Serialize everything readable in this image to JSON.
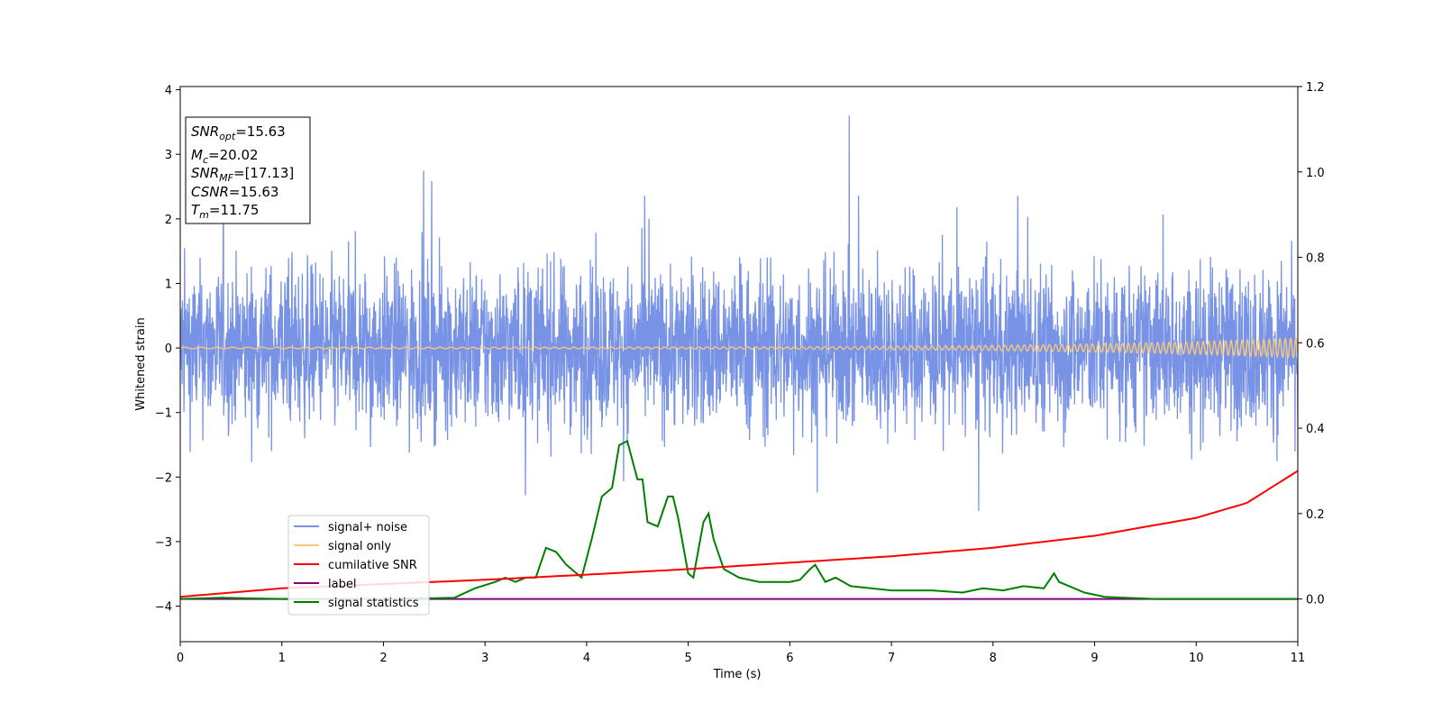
{
  "chart_data": {
    "type": "line",
    "xlabel": "Time (s)",
    "ylabel": "Whitened strain",
    "xlim": [
      0,
      11
    ],
    "ylim": [
      -4.55,
      4.05
    ],
    "y2lim": [
      -0.1,
      1.2
    ],
    "xticks": [
      0,
      1,
      2,
      3,
      4,
      5,
      6,
      7,
      8,
      9,
      10,
      11
    ],
    "yticks": [
      -4,
      -3,
      -2,
      -1,
      0,
      1,
      2,
      3,
      4
    ],
    "yticks_labels": [
      "−4",
      "−3",
      "−2",
      "−1",
      "0",
      "1",
      "2",
      "3",
      "4"
    ],
    "y2ticks": [
      0.0,
      0.2,
      0.4,
      0.6,
      0.8,
      1.0,
      1.2
    ],
    "y2ticks_labels": [
      "0.0",
      "0.2",
      "0.4",
      "0.6",
      "0.8",
      "1.0",
      "1.2"
    ],
    "grid": false,
    "legend_position": "lower-left",
    "colors": {
      "signal_noise": "#7893e6",
      "signal_only": "#f7c77a",
      "cumulative_snr": "#ff0000",
      "label": "#800080",
      "signal_statistics": "#008000"
    },
    "series": [
      {
        "name": "signal+ noise",
        "axis": "left",
        "note": "high-frequency noise, mostly within ±1.5, peaks to about ±3",
        "envelope_low": -1.55,
        "envelope_high": 1.45
      },
      {
        "name": "signal only",
        "axis": "left",
        "note": "chirp centered at 0, amplitude growing to about 0.15 at t=11"
      },
      {
        "name": "cumilative SNR",
        "axis": "right",
        "x": [
          0,
          1,
          2,
          3,
          4,
          5,
          6,
          7,
          8,
          9,
          10,
          10.5,
          11
        ],
        "values": [
          0.005,
          0.025,
          0.035,
          0.045,
          0.057,
          0.07,
          0.085,
          0.1,
          0.12,
          0.148,
          0.19,
          0.225,
          0.3
        ]
      },
      {
        "name": "label",
        "axis": "right",
        "x": [
          0,
          11
        ],
        "values": [
          0.0,
          0.0
        ]
      },
      {
        "name": "signal statistics",
        "axis": "right",
        "x": [
          0,
          0.4,
          1.0,
          2.0,
          2.5,
          2.7,
          2.9,
          3.1,
          3.2,
          3.3,
          3.4,
          3.5,
          3.6,
          3.7,
          3.8,
          3.95,
          4.05,
          4.15,
          4.25,
          4.32,
          4.4,
          4.5,
          4.55,
          4.6,
          4.7,
          4.8,
          4.85,
          4.9,
          5.0,
          5.05,
          5.15,
          5.2,
          5.25,
          5.35,
          5.5,
          5.7,
          5.85,
          6.0,
          6.1,
          6.2,
          6.25,
          6.35,
          6.45,
          6.6,
          6.8,
          7.0,
          7.2,
          7.4,
          7.7,
          7.9,
          8.1,
          8.3,
          8.5,
          8.6,
          8.65,
          8.75,
          8.9,
          9.1,
          9.3,
          9.6,
          11
        ],
        "values": [
          0.0,
          0.003,
          0.0,
          0.0,
          0.002,
          0.003,
          0.025,
          0.04,
          0.05,
          0.04,
          0.05,
          0.05,
          0.12,
          0.11,
          0.08,
          0.05,
          0.14,
          0.24,
          0.26,
          0.36,
          0.37,
          0.28,
          0.28,
          0.18,
          0.17,
          0.24,
          0.24,
          0.19,
          0.06,
          0.05,
          0.18,
          0.2,
          0.14,
          0.07,
          0.05,
          0.04,
          0.04,
          0.04,
          0.045,
          0.07,
          0.08,
          0.04,
          0.05,
          0.03,
          0.025,
          0.02,
          0.02,
          0.02,
          0.015,
          0.025,
          0.02,
          0.03,
          0.025,
          0.06,
          0.04,
          0.03,
          0.015,
          0.005,
          0.003,
          0.0,
          0.0
        ]
      }
    ],
    "info_box": {
      "snr_opt_label": "SNR",
      "snr_opt_sub": "opt",
      "snr_opt_value": "=15.63",
      "mc_label": "M",
      "mc_sub": "c",
      "mc_value": "=20.02",
      "snr_mf_label": "SNR",
      "snr_mf_sub": "MF",
      "snr_mf_value": "=[17.13]",
      "csnr_label": "CSNR",
      "csnr_value": "=15.63",
      "tm_label": "T",
      "tm_sub": "m",
      "tm_value": "=11.75"
    }
  }
}
